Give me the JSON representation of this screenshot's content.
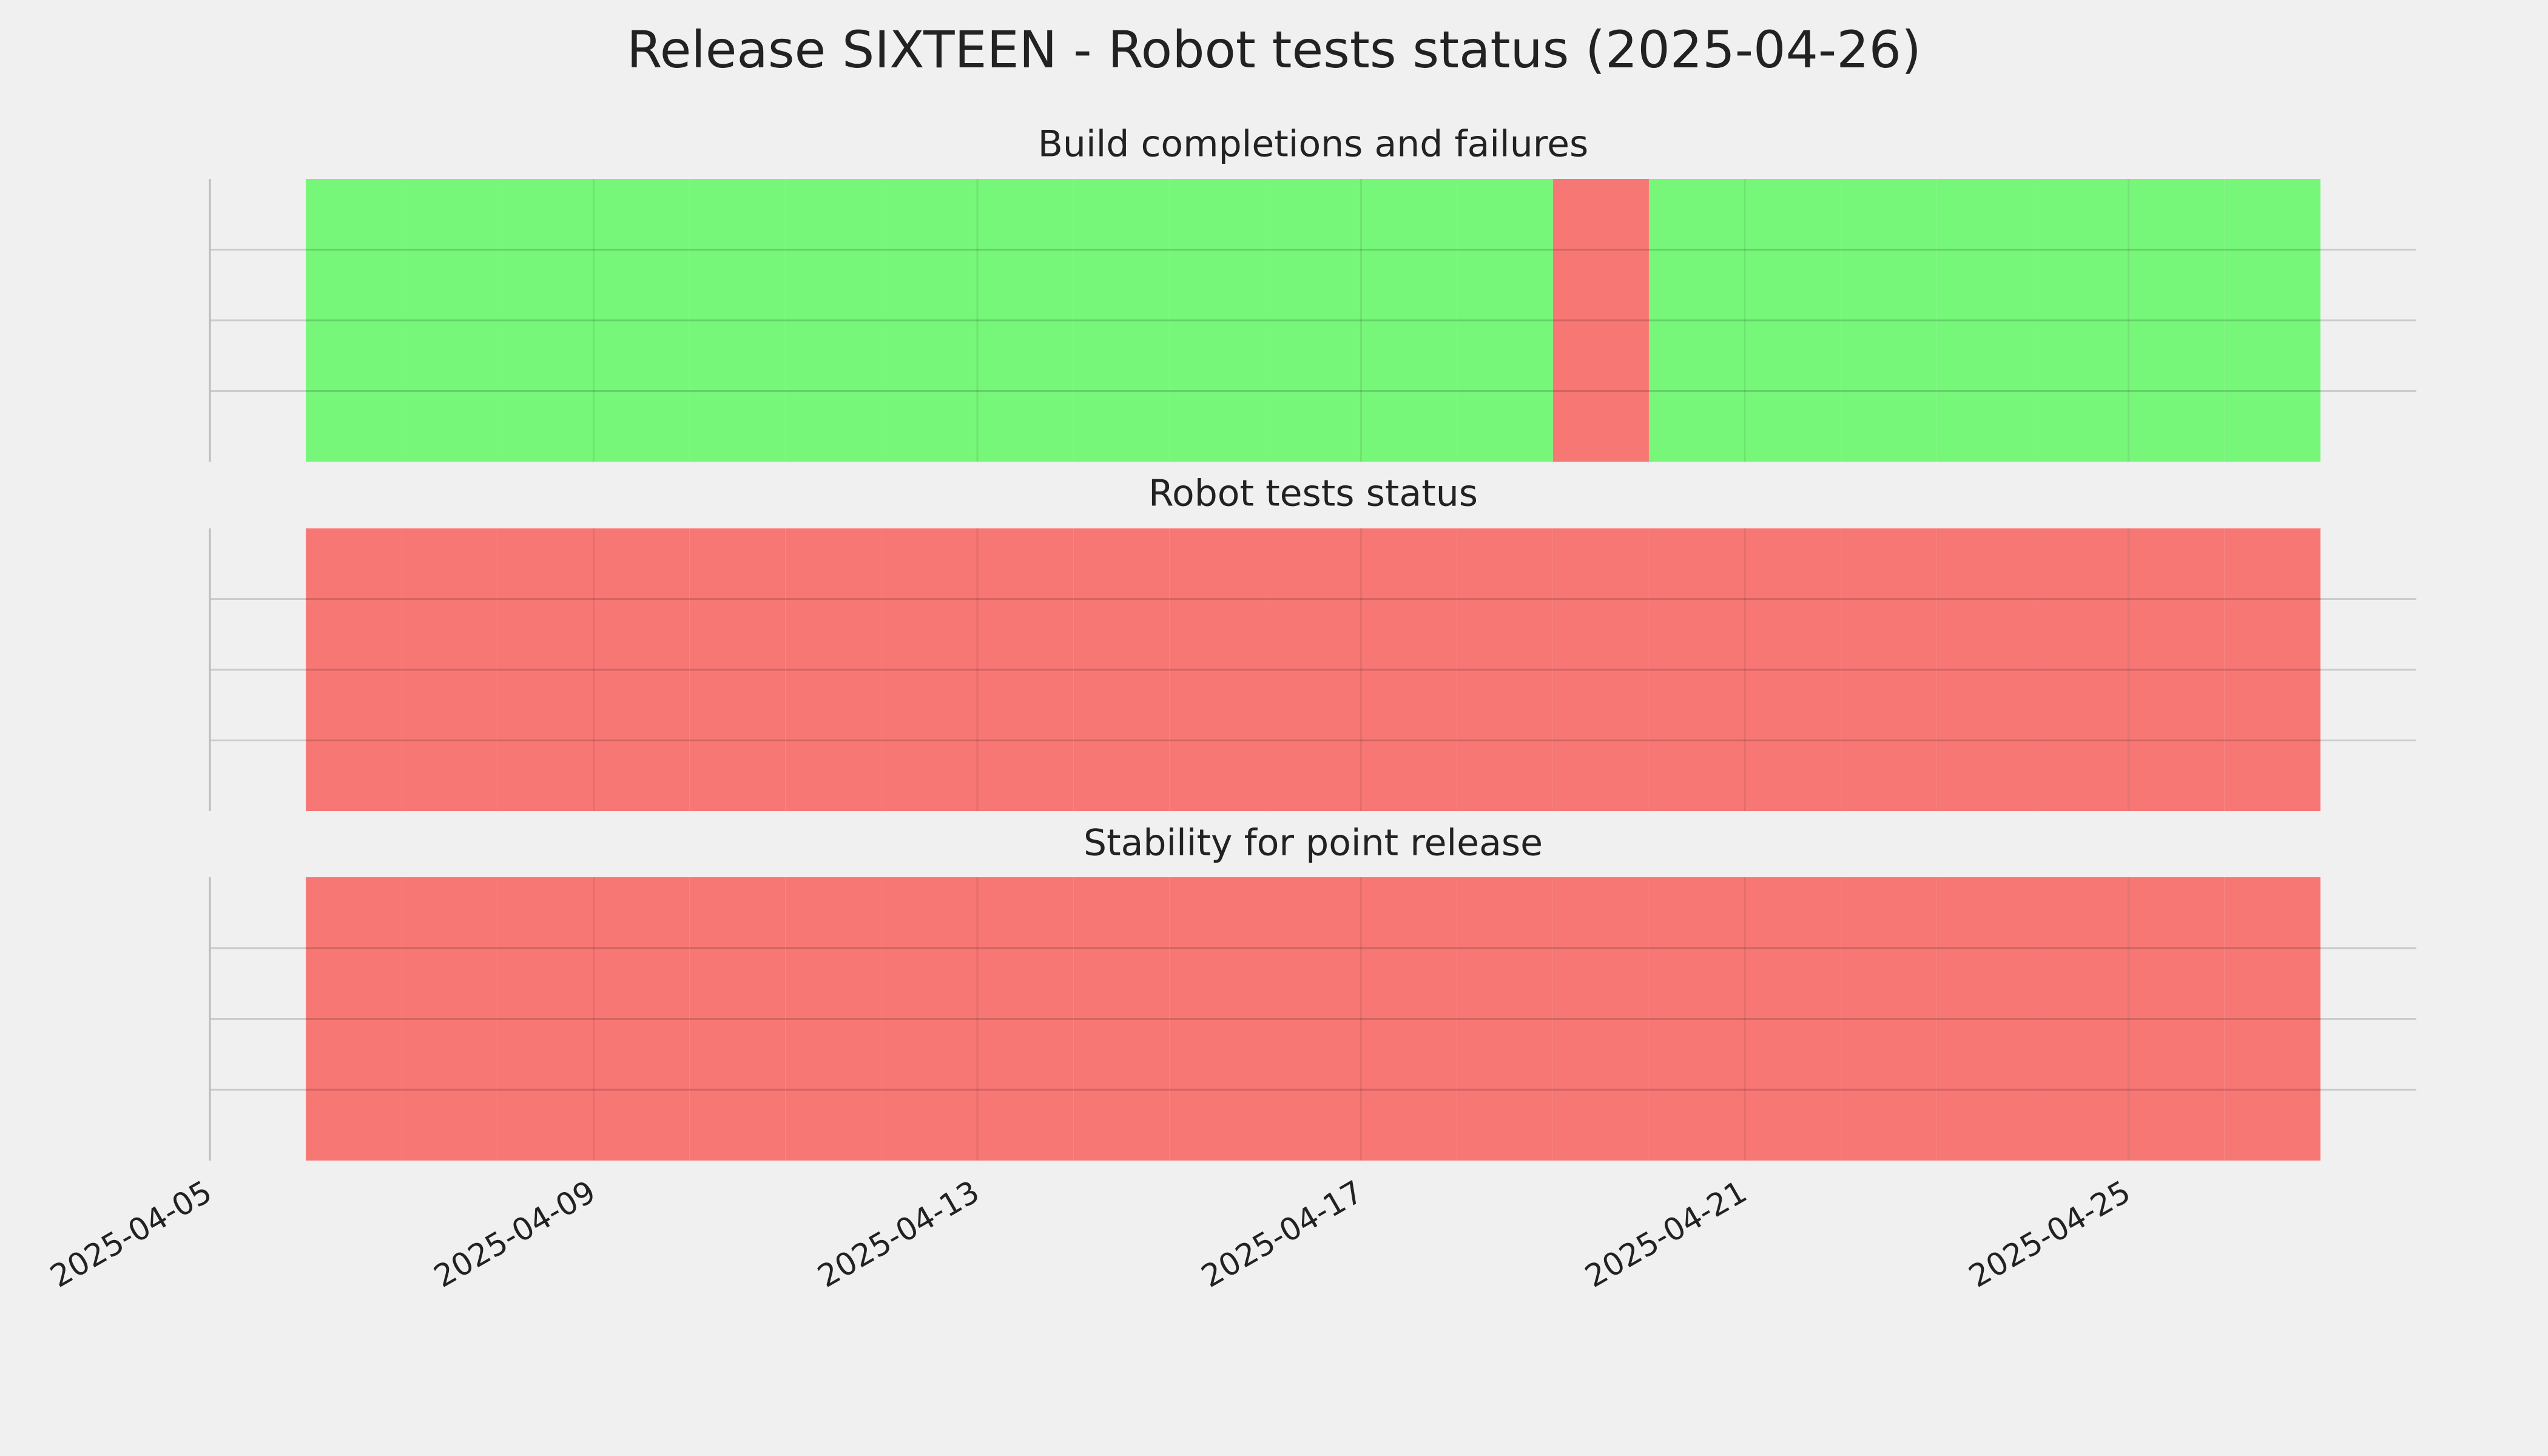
{
  "title": "Release SIXTEEN - Robot tests status (2025-04-26)",
  "chart_data": [
    {
      "type": "timeline",
      "title": "Build completions and failures",
      "x": [
        "2025-04-06",
        "2025-04-07",
        "2025-04-08",
        "2025-04-09",
        "2025-04-10",
        "2025-04-11",
        "2025-04-12",
        "2025-04-13",
        "2025-04-14",
        "2025-04-15",
        "2025-04-16",
        "2025-04-17",
        "2025-04-18",
        "2025-04-19",
        "2025-04-20",
        "2025-04-21",
        "2025-04-22",
        "2025-04-23",
        "2025-04-24",
        "2025-04-25",
        "2025-04-26"
      ],
      "values": [
        1,
        1,
        1,
        1,
        1,
        1,
        1,
        1,
        1,
        1,
        1,
        1,
        1,
        0,
        1,
        1,
        1,
        1,
        1,
        1,
        1
      ],
      "pass_color": "#77f77a",
      "fail_color": "#f77775",
      "xlim": [
        "2025-04-05",
        "2025-04-28"
      ],
      "xticks": [
        "2025-04-05",
        "2025-04-09",
        "2025-04-13",
        "2025-04-17",
        "2025-04-21",
        "2025-04-25"
      ]
    },
    {
      "type": "timeline",
      "title": "Robot tests status",
      "x": [
        "2025-04-06",
        "2025-04-07",
        "2025-04-08",
        "2025-04-09",
        "2025-04-10",
        "2025-04-11",
        "2025-04-12",
        "2025-04-13",
        "2025-04-14",
        "2025-04-15",
        "2025-04-16",
        "2025-04-17",
        "2025-04-18",
        "2025-04-19",
        "2025-04-20",
        "2025-04-21",
        "2025-04-22",
        "2025-04-23",
        "2025-04-24",
        "2025-04-25",
        "2025-04-26"
      ],
      "values": [
        0,
        0,
        0,
        0,
        0,
        0,
        0,
        0,
        0,
        0,
        0,
        0,
        0,
        0,
        0,
        0,
        0,
        0,
        0,
        0,
        0
      ],
      "pass_color": "#77f77a",
      "fail_color": "#f77775",
      "xlim": [
        "2025-04-05",
        "2025-04-28"
      ],
      "xticks": [
        "2025-04-05",
        "2025-04-09",
        "2025-04-13",
        "2025-04-17",
        "2025-04-21",
        "2025-04-25"
      ]
    },
    {
      "type": "timeline",
      "title": "Stability for point release",
      "x": [
        "2025-04-06",
        "2025-04-07",
        "2025-04-08",
        "2025-04-09",
        "2025-04-10",
        "2025-04-11",
        "2025-04-12",
        "2025-04-13",
        "2025-04-14",
        "2025-04-15",
        "2025-04-16",
        "2025-04-17",
        "2025-04-18",
        "2025-04-19",
        "2025-04-20",
        "2025-04-21",
        "2025-04-22",
        "2025-04-23",
        "2025-04-24",
        "2025-04-25",
        "2025-04-26"
      ],
      "values": [
        0,
        0,
        0,
        0,
        0,
        0,
        0,
        0,
        0,
        0,
        0,
        0,
        0,
        0,
        0,
        0,
        0,
        0,
        0,
        0,
        0
      ],
      "pass_color": "#77f77a",
      "fail_color": "#f77775",
      "xlim": [
        "2025-04-05",
        "2025-04-28"
      ],
      "xticks": [
        "2025-04-05",
        "2025-04-09",
        "2025-04-13",
        "2025-04-17",
        "2025-04-21",
        "2025-04-25"
      ]
    }
  ]
}
